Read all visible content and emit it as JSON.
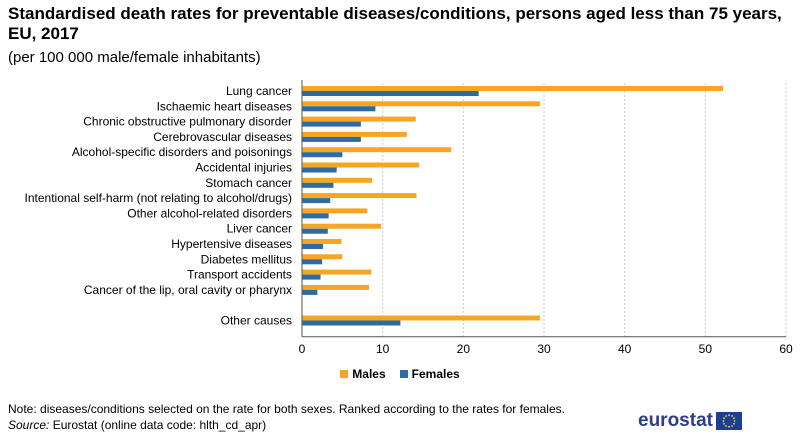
{
  "header": {
    "title": "Standardised death rates for preventable diseases/conditions, persons aged less than 75 years, EU, 2017",
    "subtitle": "(per 100 000 male/female inhabitants)"
  },
  "footer": {
    "note": "Note: diseases/conditions selected on the rate for both sexes. Ranked according to the rates for females.",
    "source_label": "Source:",
    "source_text": " Eurostat (online data code: hlth_cd_apr)",
    "logo_text": "eurostat"
  },
  "colors": {
    "males": "#f5a623",
    "females": "#2e6aa6",
    "grid": "#cccccc",
    "axis": "#555555"
  },
  "chart_data": {
    "type": "bar",
    "orientation": "horizontal",
    "categories": [
      "Lung cancer",
      "Ischaemic heart diseases",
      "Chronic obstructive pulmonary disorder",
      "Cerebrovascular diseases",
      "Alcohol-specific disorders and poisonings",
      "Accidental injuries",
      "Stomach cancer",
      "Intentional self-harm (not relating to alcohol/drugs)",
      "Other alcohol-related disorders",
      "Liver cancer",
      "Hypertensive diseases",
      "Diabetes mellitus",
      "Transport accidents",
      "Cancer of the lip, oral cavity or pharynx",
      "",
      "Other causes"
    ],
    "series": [
      {
        "name": "Males",
        "color": "#f5a623",
        "values": [
          52.2,
          29.5,
          14.1,
          13.0,
          18.5,
          14.5,
          8.7,
          14.2,
          8.1,
          9.8,
          4.9,
          5.0,
          8.6,
          8.3,
          null,
          29.5
        ]
      },
      {
        "name": "Females",
        "color": "#2e6aa6",
        "values": [
          21.9,
          9.1,
          7.3,
          7.3,
          5.0,
          4.3,
          3.9,
          3.5,
          3.3,
          3.2,
          2.6,
          2.5,
          2.3,
          1.9,
          null,
          12.2
        ]
      }
    ],
    "xlim": [
      0,
      60
    ],
    "xticks": [
      0,
      10,
      20,
      30,
      40,
      50,
      60
    ],
    "title": "Standardised death rates for preventable diseases/conditions, persons aged less than 75 years, EU, 2017",
    "xlabel": "",
    "ylabel": "",
    "grid": "vertical dotted",
    "legend": "bottom-center"
  }
}
